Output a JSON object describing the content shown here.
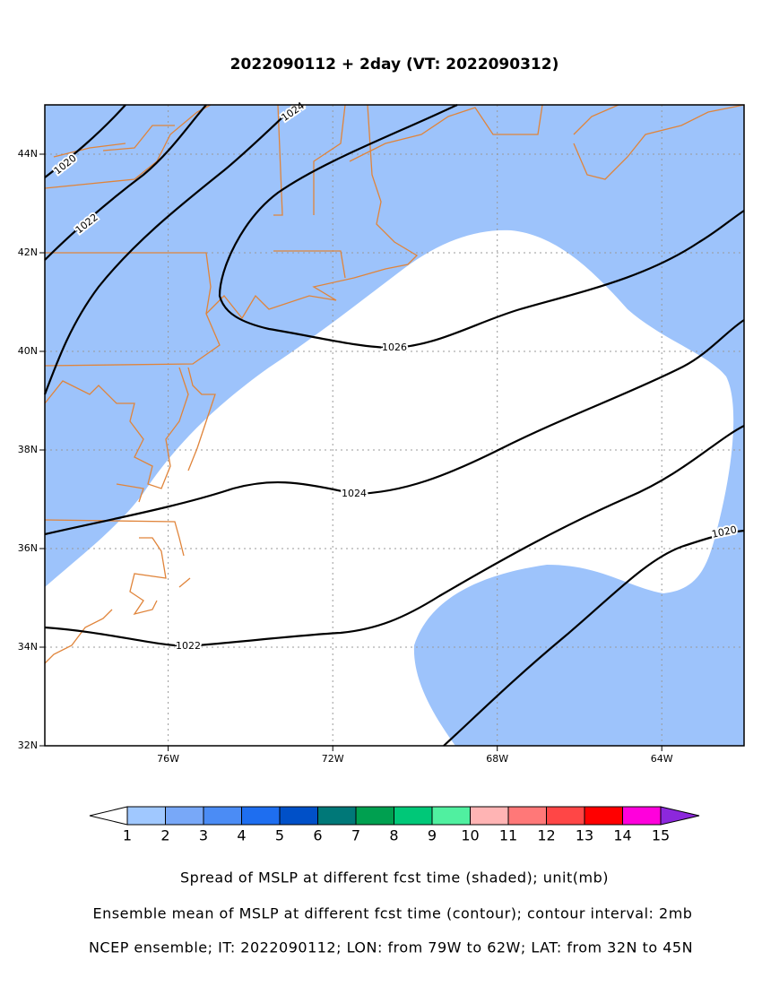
{
  "header": {
    "title": "2022090112 + 2day (VT: 2022090312)"
  },
  "map": {
    "lon_labels": [
      "76W",
      "72W",
      "68W",
      "64W"
    ],
    "lat_labels": [
      "32N",
      "34N",
      "36N",
      "38N",
      "40N",
      "42N",
      "44N"
    ],
    "contour_labels": [
      "1020",
      "1022",
      "1024",
      "1026",
      "1024",
      "1022",
      "1020"
    ]
  },
  "colorbar": {
    "labels": [
      1,
      2,
      3,
      4,
      5,
      6,
      7,
      8,
      9,
      10,
      11,
      12,
      13,
      14,
      15
    ]
  },
  "captions": [
    "Spread of MSLP at different fcst time (shaded); unit(mb)",
    "Ensemble mean of MSLP at different fcst time (contour); contour interval: 2mb",
    "NCEP ensemble; IT: 2022090112; LON: from 79W to 62W; LAT: from 32N to 45N"
  ]
}
